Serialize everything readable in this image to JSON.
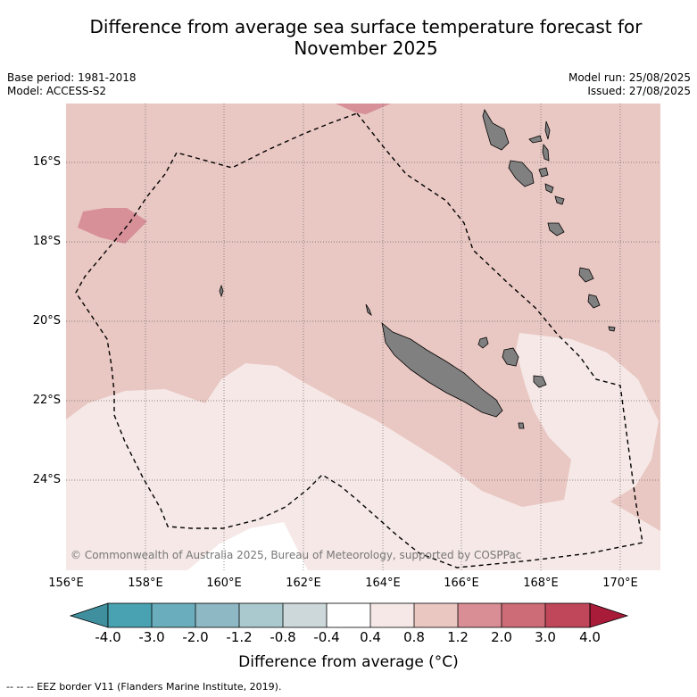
{
  "title_line1": "Difference from average sea surface temperature forecast for",
  "title_line2": "November 2025",
  "base_period": "Base period: 1981-2018",
  "model": "Model: ACCESS-S2",
  "model_run": "Model run: 25/08/2025",
  "issued": "Issued: 27/08/2025",
  "lat_ticks": [
    "16°S",
    "18°S",
    "20°S",
    "22°S",
    "24°S"
  ],
  "lon_ticks": [
    "156°E",
    "158°E",
    "160°E",
    "162°E",
    "164°E",
    "166°E",
    "168°E",
    "170°E"
  ],
  "copyright": "© Commonwealth of Australia 2025, Bureau of Meteorology, supported by COSPPac",
  "colorbar": {
    "labels": [
      "-4.0",
      "-3.0",
      "-2.0",
      "-1.2",
      "-0.8",
      "-0.4",
      "0.4",
      "0.8",
      "1.2",
      "2.0",
      "3.0",
      "4.0"
    ],
    "colors": [
      "#3f8f9e",
      "#49a2b1",
      "#6aaebd",
      "#8db8c4",
      "#aac9ce",
      "#cdd8da",
      "#ffffff",
      "#f5e8e6",
      "#ebc7c1",
      "#d98d94",
      "#cd6c76",
      "#c0475a",
      "#a81c3a"
    ],
    "label": "Difference from average (°C)"
  },
  "footnote": "-- -- -- EEZ border V11 (Flanders Marine Institute, 2019).",
  "colors": {
    "band_0_4_0_8": "#f5e8e6",
    "band_0_8_1_2": "#e9c7c2",
    "band_1_2_2_0": "#d78f98",
    "band_neutral": "#ffffff",
    "land": "#808080"
  }
}
